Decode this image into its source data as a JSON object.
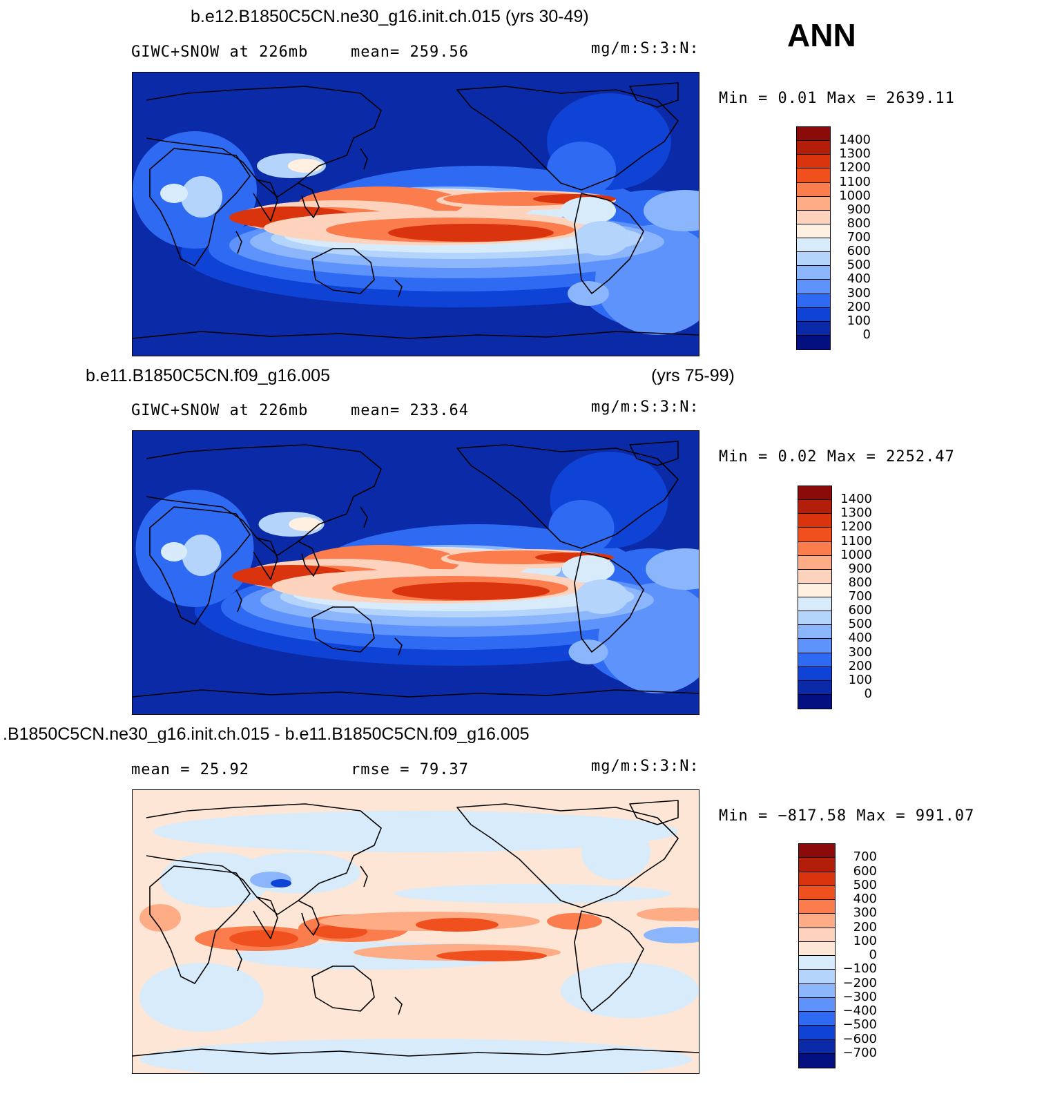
{
  "season": "ANN",
  "panels": [
    {
      "title_left": "b.e12.B1850C5CN.ne30_g16.init.ch.015 (yrs 30-49)",
      "title_right": "",
      "field_label": "GIWC+SNOW at 226mb",
      "stat_label": "mean= 259.56",
      "units": "mg/m:S:3:N:",
      "minmax": "Min =    0.01 Max  =  2639.11",
      "colorbar": {
        "labels": [
          "1400",
          "1300",
          "1200",
          "1100",
          "1000",
          "900",
          "800",
          "700",
          "600",
          "500",
          "400",
          "300",
          "200",
          "100",
          "0"
        ],
        "colors": [
          "#8b0a0a",
          "#b31e0a",
          "#d9340e",
          "#f04f1e",
          "#fb7c4c",
          "#fdac86",
          "#fed3bd",
          "#fff0e1",
          "#d8ebfb",
          "#b5d4fb",
          "#8cb6fb",
          "#5d93fb",
          "#2f6bf2",
          "#0f43d6",
          "#0a2aa8",
          "#040f80"
        ]
      }
    },
    {
      "title_left": "b.e11.B1850C5CN.f09_g16.005",
      "title_right": "(yrs 75-99)",
      "field_label": "GIWC+SNOW at 226mb",
      "stat_label": "mean= 233.64",
      "units": "mg/m:S:3:N:",
      "minmax": "Min =    0.02 Max  =  2252.47",
      "colorbar": {
        "labels": [
          "1400",
          "1300",
          "1200",
          "1100",
          "1000",
          "900",
          "800",
          "700",
          "600",
          "500",
          "400",
          "300",
          "200",
          "100",
          "0"
        ],
        "colors": [
          "#8b0a0a",
          "#b31e0a",
          "#d9340e",
          "#f04f1e",
          "#fb7c4c",
          "#fdac86",
          "#fed3bd",
          "#fff0e1",
          "#d8ebfb",
          "#b5d4fb",
          "#8cb6fb",
          "#5d93fb",
          "#2f6bf2",
          "#0f43d6",
          "#0a2aa8",
          "#040f80"
        ]
      }
    },
    {
      "title_left": ".B1850C5CN.ne30_g16.init.ch.015 - b.e11.B1850C5CN.f09_g16.005",
      "title_right": "",
      "field_label": "mean =    25.92",
      "stat_label": "rmse =    79.37",
      "units": "mg/m:S:3:N:",
      "minmax": "Min = −817.58 Max  =  991.07",
      "colorbar": {
        "labels": [
          "700",
          "600",
          "500",
          "400",
          "300",
          "200",
          "100",
          "0",
          "−100",
          "−200",
          "−300",
          "−400",
          "−500",
          "−600",
          "−700"
        ],
        "colors": [
          "#8b0a0a",
          "#b31e0a",
          "#d9340e",
          "#f04f1e",
          "#fb7c4c",
          "#fdac86",
          "#fed3bd",
          "#fde6d6",
          "#d8ebfb",
          "#b5d4fb",
          "#8cb6fb",
          "#5d93fb",
          "#2f6bf2",
          "#0f43d6",
          "#0a2aa8",
          "#040f80"
        ]
      }
    }
  ],
  "chart_data": [
    {
      "type": "heatmap",
      "title": "b.e12.B1850C5CN.ne30_g16.init.ch.015 (yrs 30-49)",
      "variable": "GIWC+SNOW at 226mb",
      "units": "mg/m:S:3:N:",
      "mean": 259.56,
      "min": 0.01,
      "max": 2639.11,
      "contour_levels": [
        0,
        100,
        200,
        300,
        400,
        500,
        600,
        700,
        800,
        900,
        1000,
        1100,
        1200,
        1300,
        1400
      ]
    },
    {
      "type": "heatmap",
      "title": "b.e11.B1850C5CN.f09_g16.005 (yrs 75-99)",
      "variable": "GIWC+SNOW at 226mb",
      "units": "mg/m:S:3:N:",
      "mean": 233.64,
      "min": 0.02,
      "max": 2252.47,
      "contour_levels": [
        0,
        100,
        200,
        300,
        400,
        500,
        600,
        700,
        800,
        900,
        1000,
        1100,
        1200,
        1300,
        1400
      ]
    },
    {
      "type": "heatmap",
      "title": ".B1850C5CN.ne30_g16.init.ch.015 - b.e11.B1850C5CN.f09_g16.005",
      "units": "mg/m:S:3:N:",
      "mean": 25.92,
      "rmse": 79.37,
      "min": -817.58,
      "max": 991.07,
      "contour_levels": [
        -700,
        -600,
        -500,
        -400,
        -300,
        -200,
        -100,
        0,
        100,
        200,
        300,
        400,
        500,
        600,
        700
      ]
    }
  ]
}
